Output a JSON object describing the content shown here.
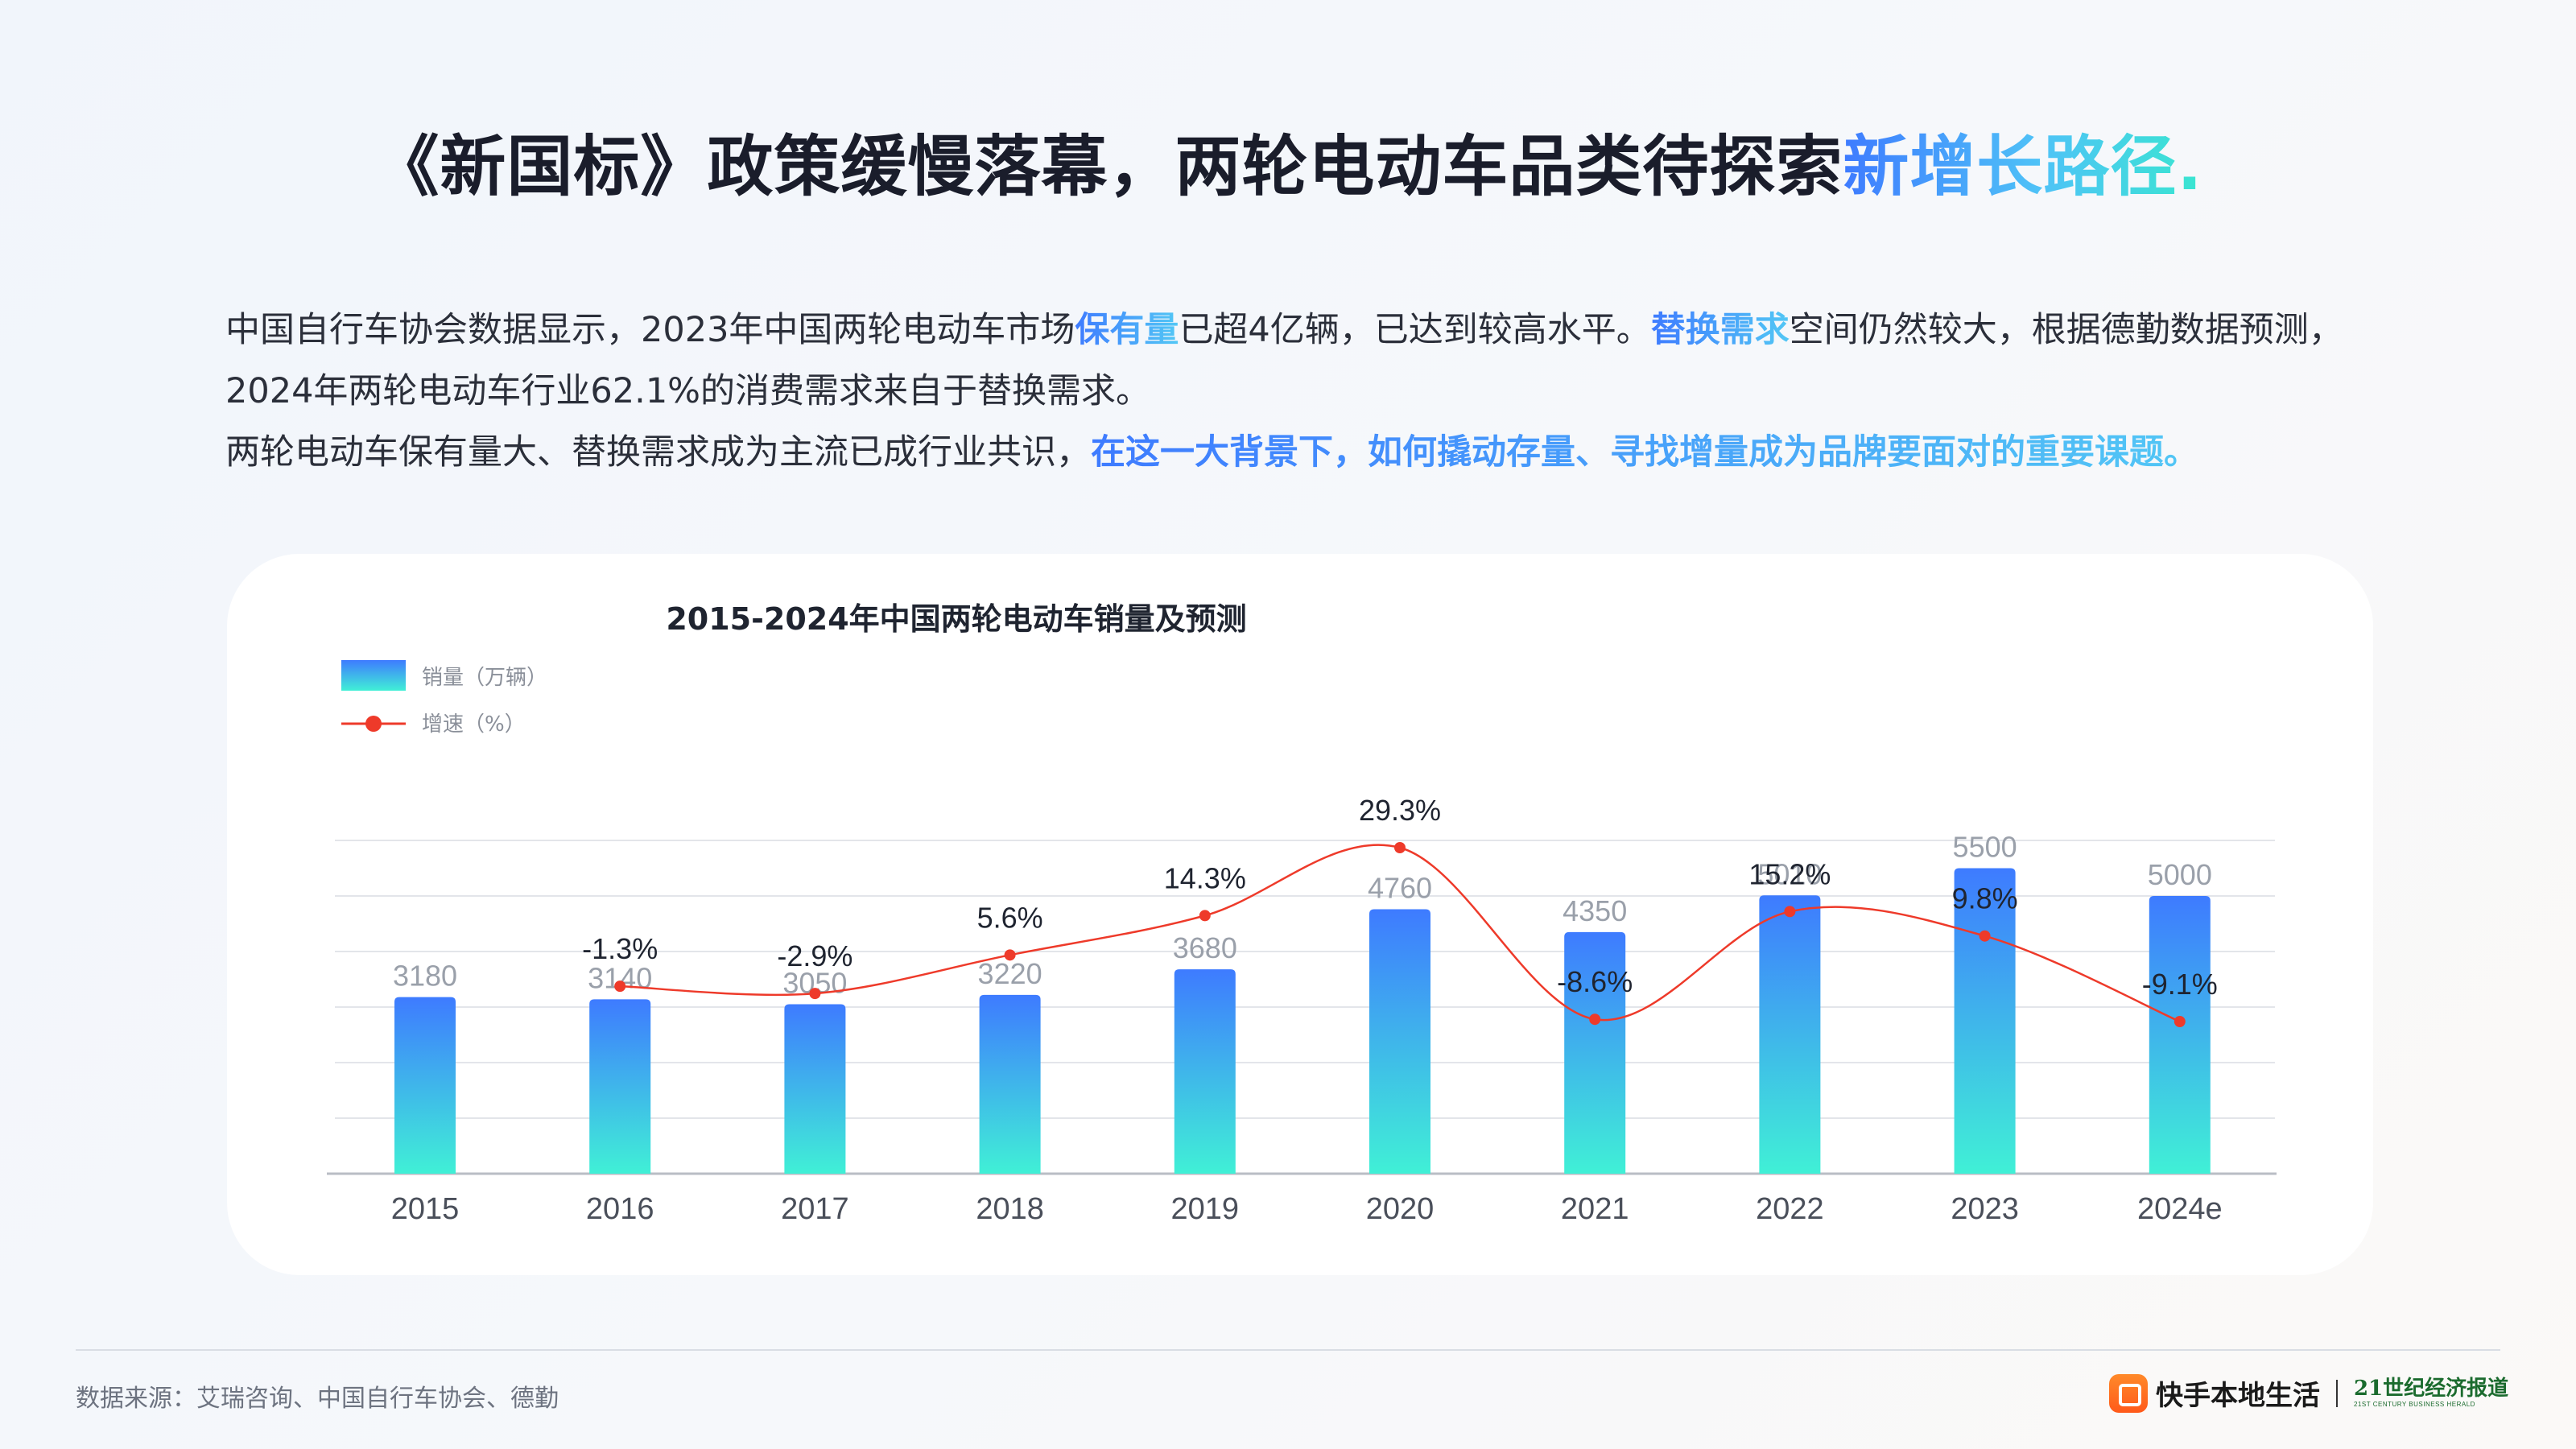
{
  "title": {
    "main": "《新国标》政策缓慢落幕，两轮电动车品类待探索",
    "highlight": "新增长路径."
  },
  "paragraph1": {
    "t1": "中国自行车协会数据显示，2023年中国两轮电动车市场",
    "h1": "保有量",
    "t2": "已超4亿辆，已达到较高水平。",
    "h2": "替换需求",
    "t3": "空间仍然较大，根据德勤数据预测，2024年两轮电动车行业62.1%的消费需求来自于替换需求。"
  },
  "paragraph2": {
    "t1": "两轮电动车保有量大、替换需求成为主流已成行业共识，",
    "h1": "在这一大背景下，如何撬动存量、寻找增量成为品牌要面对的重要课题。"
  },
  "chart_data": {
    "type": "bar",
    "title": "2015-2024年中国两轮电动车销量及预测",
    "categories": [
      "2015",
      "2016",
      "2017",
      "2018",
      "2019",
      "2020",
      "2021",
      "2022",
      "2023",
      "2024e"
    ],
    "series": [
      {
        "name": "销量（万辆）",
        "type": "bar",
        "values": [
          3180,
          3140,
          3050,
          3220,
          3680,
          4760,
          4350,
          5010,
          5500,
          5000
        ]
      },
      {
        "name": "增速（%）",
        "type": "line",
        "values": [
          null,
          -1.3,
          -2.9,
          5.6,
          14.3,
          29.3,
          -8.6,
          15.2,
          9.8,
          -9.1
        ],
        "labels": [
          null,
          "-1.3%",
          "-2.9%",
          "5.6%",
          "14.3%",
          "29.3%",
          "-8.6%",
          "15.2%",
          "9.8%",
          "-9.1%"
        ]
      }
    ],
    "grid": true,
    "legend_position": "top-left",
    "colors": {
      "bar_top": "#3e7bff",
      "bar_bottom": "#40f0d6",
      "line": "#ee3a2a",
      "value_label": "#9aa0aa",
      "grid": "#e3e5ea"
    }
  },
  "footer": {
    "source": "数据来源：艾瑞咨询、中国自行车协会、德勤",
    "brand": "快手本地生活",
    "brand2_cn": "21世纪经济报道",
    "brand2_en": "21ST CENTURY BUSINESS HERALD"
  }
}
